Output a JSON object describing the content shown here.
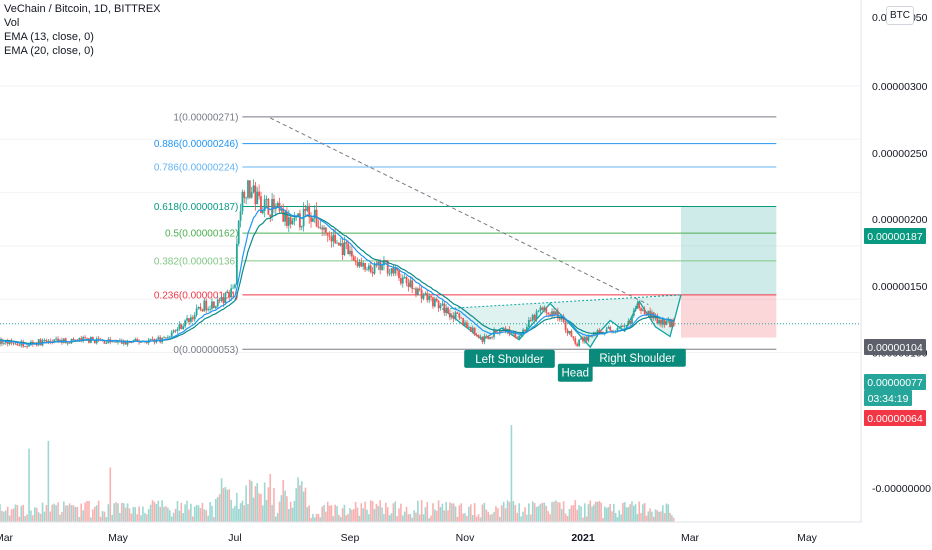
{
  "legend": {
    "title": "VeChain / Bitcoin, 1D, BITTREX",
    "vol": "Vol",
    "ema13": "EMA (13, close, 0)",
    "ema20": "EMA (20, close, 0)"
  },
  "currency_badge": "BTC",
  "colors": {
    "up": "#26a69a",
    "down": "#ef5350",
    "ema13": "#2196f3",
    "ema20": "#0a8a8a",
    "pattern": "#0fa3a3"
  },
  "chart_data": {
    "type": "candlestick",
    "x_ticks": [
      "Mar",
      "May",
      "Jul",
      "Sep",
      "Nov",
      "2021",
      "Mar",
      "May"
    ],
    "y_ticks": [
      "0.00000050",
      "0.00000100",
      "0.00000150",
      "0.00000200",
      "0.00000250",
      "0.00000300",
      "-0.00000000"
    ],
    "ylim": [
      3e-07,
      3.1e-06
    ],
    "fib_levels": [
      {
        "label": "1(0.00000271)",
        "ratio": 1,
        "price": 2.71e-06,
        "color": "#787b86"
      },
      {
        "label": "0.886(0.00000246)",
        "ratio": 0.886,
        "price": 2.46e-06,
        "color": "#2196f3"
      },
      {
        "label": "0.786(0.00000224)",
        "ratio": 0.786,
        "price": 2.24e-06,
        "color": "#64b5f6"
      },
      {
        "label": "0.618(0.00000187)",
        "ratio": 0.618,
        "price": 1.87e-06,
        "color": "#089981"
      },
      {
        "label": "0.5(0.00000162)",
        "ratio": 0.5,
        "price": 1.62e-06,
        "color": "#4caf50"
      },
      {
        "label": "0.382(0.00000136)",
        "ratio": 0.382,
        "price": 1.36e-06,
        "color": "#81c784"
      },
      {
        "label": "0.236(0.00000104)",
        "ratio": 0.236,
        "price": 1.04e-06,
        "color": "#f23645"
      },
      {
        "label": "0(0.00000053)",
        "ratio": 0,
        "price": 5.3e-07,
        "color": "#787b86"
      }
    ],
    "price_badges": [
      {
        "text": "0.00000187",
        "price": 1.87e-06,
        "color": "#089981"
      },
      {
        "text": "0.00000104",
        "price": 1.04e-06,
        "color": "#5d606b"
      },
      {
        "text": "0.00000077",
        "price": 7.7e-07,
        "color": "#26a69a"
      },
      {
        "text": "03:34:19",
        "price": 7e-07,
        "color": "#26a69a"
      },
      {
        "text": "0.00000064",
        "price": 6.4e-07,
        "color": "#f23645"
      }
    ],
    "pattern_labels": [
      {
        "text": "Left Shoulder",
        "date": "2020-11-24",
        "price": 6e-07
      },
      {
        "text": "Head",
        "date": "2020-12-28",
        "price": 4.7e-07
      },
      {
        "text": "Right Shoulder",
        "date": "2021-01-31",
        "price": 6.1e-07
      }
    ],
    "pattern_points": [
      {
        "date": "2020-10-20",
        "price": 9.1e-07
      },
      {
        "date": "2020-11-10",
        "price": 6.2e-07
      },
      {
        "date": "2020-11-20",
        "price": 7.3e-07
      },
      {
        "date": "2020-11-29",
        "price": 6.2e-07
      },
      {
        "date": "2020-12-15",
        "price": 9.6e-07
      },
      {
        "date": "2020-12-26",
        "price": 7.5e-07
      },
      {
        "date": "2021-01-05",
        "price": 5.5e-07
      },
      {
        "date": "2021-01-10",
        "price": 6.9e-07
      },
      {
        "date": "2021-01-16",
        "price": 8e-07
      },
      {
        "date": "2021-01-24",
        "price": 7e-07
      },
      {
        "date": "2021-02-01",
        "price": 9.8e-07
      },
      {
        "date": "2021-02-10",
        "price": 7.4e-07
      },
      {
        "date": "2021-02-18",
        "price": 6.5e-07
      },
      {
        "date": "2021-02-24",
        "price": 1.04e-06
      }
    ],
    "trend_line": [
      {
        "date": "2020-07-20",
        "price": 2.7e-06
      },
      {
        "date": "2021-02-06",
        "price": 9.5e-07
      }
    ],
    "long_position": {
      "start_date": "2021-02-24",
      "end_date": "2021-04-15",
      "target": 1.87e-06,
      "entry": 1.04e-06,
      "stop": 6.4e-07
    },
    "close_path": [
      {
        "date": "2020-02-01",
        "price": 6.5e-07
      },
      {
        "date": "2020-02-20",
        "price": 6.2e-07
      },
      {
        "date": "2020-03-10",
        "price": 5.8e-07
      },
      {
        "date": "2020-03-25",
        "price": 6e-07
      },
      {
        "date": "2020-04-15",
        "price": 6.2e-07
      },
      {
        "date": "2020-05-05",
        "price": 5.9e-07
      },
      {
        "date": "2020-05-25",
        "price": 6.3e-07
      },
      {
        "date": "2020-06-05",
        "price": 7.8e-07
      },
      {
        "date": "2020-06-15",
        "price": 9.4e-07
      },
      {
        "date": "2020-06-25",
        "price": 9.9e-07
      },
      {
        "date": "2020-07-01",
        "price": 1.15e-06
      },
      {
        "date": "2020-07-03",
        "price": 1.8e-06
      },
      {
        "date": "2020-07-06",
        "price": 2.05e-06
      },
      {
        "date": "2020-07-10",
        "price": 2e-06
      },
      {
        "date": "2020-07-15",
        "price": 1.9e-06
      },
      {
        "date": "2020-07-22",
        "price": 1.85e-06
      },
      {
        "date": "2020-08-01",
        "price": 1.68e-06
      },
      {
        "date": "2020-08-10",
        "price": 1.82e-06
      },
      {
        "date": "2020-08-20",
        "price": 1.6e-06
      },
      {
        "date": "2020-09-01",
        "price": 1.42e-06
      },
      {
        "date": "2020-09-10",
        "price": 1.25e-06
      },
      {
        "date": "2020-09-20",
        "price": 1.32e-06
      },
      {
        "date": "2020-10-01",
        "price": 1.15e-06
      },
      {
        "date": "2020-10-15",
        "price": 9.8e-07
      },
      {
        "date": "2020-10-30",
        "price": 8e-07
      },
      {
        "date": "2020-11-10",
        "price": 6.2e-07
      },
      {
        "date": "2020-11-20",
        "price": 7.2e-07
      },
      {
        "date": "2020-11-29",
        "price": 6.6e-07
      },
      {
        "date": "2020-12-10",
        "price": 9e-07
      },
      {
        "date": "2020-12-20",
        "price": 8.4e-07
      },
      {
        "date": "2020-12-28",
        "price": 5.8e-07
      },
      {
        "date": "2021-01-10",
        "price": 7e-07
      },
      {
        "date": "2021-01-24",
        "price": 7.2e-07
      },
      {
        "date": "2021-02-01",
        "price": 9.5e-07
      },
      {
        "date": "2021-02-12",
        "price": 7.8e-07
      },
      {
        "date": "2021-02-20",
        "price": 7.7e-07
      }
    ]
  }
}
